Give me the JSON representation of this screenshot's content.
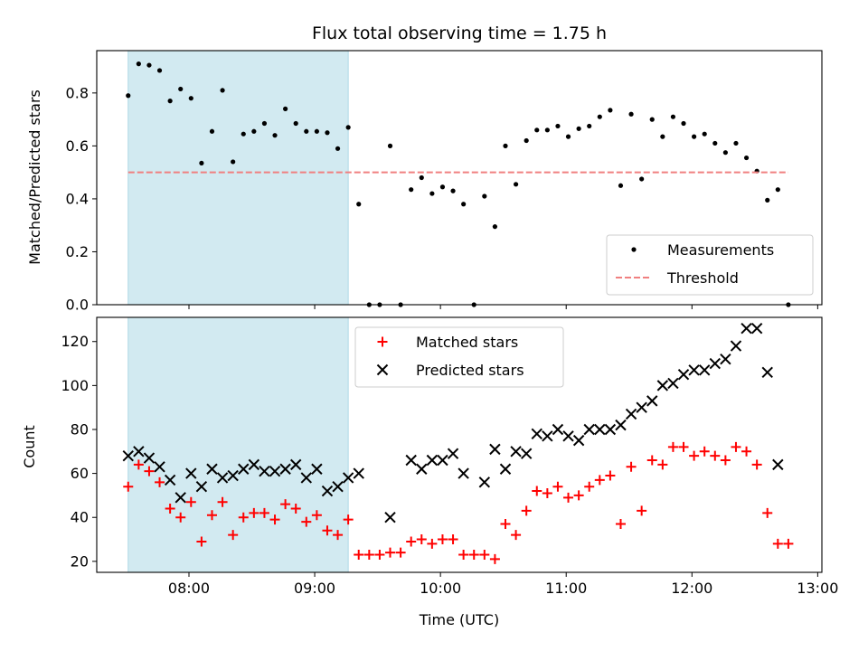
{
  "chart_data": [
    {
      "type": "scatter",
      "title": "Flux total observing time = 1.75 h",
      "xlabel": "",
      "ylabel": "Matched/Predicted stars",
      "xlim": [
        "07:16",
        "13:02"
      ],
      "ylim": [
        0,
        0.96
      ],
      "x_ticks": [
        "08:00",
        "09:00",
        "10:00",
        "11:00",
        "12:00",
        "13:00"
      ],
      "y_ticks": [
        0.0,
        0.2,
        0.4,
        0.6,
        0.8
      ],
      "y_tick_labels": [
        "0.0",
        "0.2",
        "0.4",
        "0.6",
        "0.8"
      ],
      "x_tick_labels_visible": false,
      "shaded_interval": [
        "07:31",
        "09:16"
      ],
      "shaded_color": "#add8e6",
      "legend_placement": "bottom-right",
      "grid": false,
      "series": [
        {
          "name": "Measurements",
          "kind": "scatter",
          "marker": "dot",
          "color": "#000000",
          "points": [
            [
              "07:31",
              0.79
            ],
            [
              "07:36",
              0.91
            ],
            [
              "07:41",
              0.905
            ],
            [
              "07:46",
              0.885
            ],
            [
              "07:51",
              0.77
            ],
            [
              "07:56",
              0.815
            ],
            [
              "08:01",
              0.78
            ],
            [
              "08:06",
              0.535
            ],
            [
              "08:11",
              0.655
            ],
            [
              "08:16",
              0.81
            ],
            [
              "08:21",
              0.54
            ],
            [
              "08:26",
              0.645
            ],
            [
              "08:31",
              0.655
            ],
            [
              "08:36",
              0.685
            ],
            [
              "08:41",
              0.64
            ],
            [
              "08:46",
              0.74
            ],
            [
              "08:51",
              0.685
            ],
            [
              "08:56",
              0.655
            ],
            [
              "09:01",
              0.655
            ],
            [
              "09:06",
              0.65
            ],
            [
              "09:11",
              0.59
            ],
            [
              "09:16",
              0.67
            ],
            [
              "09:21",
              0.38
            ],
            [
              "09:26",
              0.0
            ],
            [
              "09:31",
              0.0
            ],
            [
              "09:36",
              0.6
            ],
            [
              "09:41",
              0.0
            ],
            [
              "09:46",
              0.435
            ],
            [
              "09:51",
              0.48
            ],
            [
              "09:56",
              0.42
            ],
            [
              "10:01",
              0.445
            ],
            [
              "10:06",
              0.43
            ],
            [
              "10:11",
              0.38
            ],
            [
              "10:16",
              0.0
            ],
            [
              "10:21",
              0.41
            ],
            [
              "10:26",
              0.295
            ],
            [
              "10:31",
              0.6
            ],
            [
              "10:36",
              0.455
            ],
            [
              "10:41",
              0.62
            ],
            [
              "10:46",
              0.66
            ],
            [
              "10:51",
              0.66
            ],
            [
              "10:56",
              0.675
            ],
            [
              "11:01",
              0.635
            ],
            [
              "11:06",
              0.665
            ],
            [
              "11:11",
              0.675
            ],
            [
              "11:16",
              0.71
            ],
            [
              "11:21",
              0.735
            ],
            [
              "11:26",
              0.45
            ],
            [
              "11:31",
              0.72
            ],
            [
              "11:36",
              0.475
            ],
            [
              "11:41",
              0.7
            ],
            [
              "11:46",
              0.635
            ],
            [
              "11:51",
              0.71
            ],
            [
              "11:56",
              0.685
            ],
            [
              "12:01",
              0.635
            ],
            [
              "12:06",
              0.645
            ],
            [
              "12:11",
              0.61
            ],
            [
              "12:16",
              0.575
            ],
            [
              "12:21",
              0.61
            ],
            [
              "12:26",
              0.555
            ],
            [
              "12:31",
              0.505
            ],
            [
              "12:36",
              0.395
            ],
            [
              "12:41",
              0.435
            ],
            [
              "12:46",
              0.0
            ]
          ]
        },
        {
          "name": "Threshold",
          "kind": "line",
          "style": "dashed",
          "color": "#f08080",
          "points": [
            [
              "07:31",
              0.5
            ],
            [
              "12:46",
              0.5
            ]
          ]
        }
      ]
    },
    {
      "type": "scatter",
      "title": "",
      "xlabel": "Time (UTC)",
      "ylabel": "Count",
      "xlim": [
        "07:16",
        "13:02"
      ],
      "ylim": [
        15,
        131
      ],
      "x_ticks": [
        "08:00",
        "09:00",
        "10:00",
        "11:00",
        "12:00",
        "13:00"
      ],
      "x_tick_labels": [
        "08:00",
        "09:00",
        "10:00",
        "11:00",
        "12:00",
        "13:00"
      ],
      "y_ticks": [
        20,
        40,
        60,
        80,
        100,
        120
      ],
      "y_tick_labels": [
        "20",
        "40",
        "60",
        "80",
        "100",
        "120"
      ],
      "shaded_interval": [
        "07:31",
        "09:16"
      ],
      "shaded_color": "#add8e6",
      "legend_placement": "top-center",
      "grid": false,
      "series": [
        {
          "name": "Matched stars",
          "kind": "scatter",
          "marker": "plus",
          "color": "#ff0000",
          "points": [
            [
              "07:31",
              54
            ],
            [
              "07:36",
              64
            ],
            [
              "07:41",
              61
            ],
            [
              "07:46",
              56
            ],
            [
              "07:51",
              44
            ],
            [
              "07:56",
              40
            ],
            [
              "08:01",
              47
            ],
            [
              "08:06",
              29
            ],
            [
              "08:11",
              41
            ],
            [
              "08:16",
              47
            ],
            [
              "08:21",
              32
            ],
            [
              "08:26",
              40
            ],
            [
              "08:31",
              42
            ],
            [
              "08:36",
              42
            ],
            [
              "08:41",
              39
            ],
            [
              "08:46",
              46
            ],
            [
              "08:51",
              44
            ],
            [
              "08:56",
              38
            ],
            [
              "09:01",
              41
            ],
            [
              "09:06",
              34
            ],
            [
              "09:11",
              32
            ],
            [
              "09:16",
              39
            ],
            [
              "09:21",
              23
            ],
            [
              "09:26",
              23
            ],
            [
              "09:31",
              23
            ],
            [
              "09:36",
              24
            ],
            [
              "09:41",
              24
            ],
            [
              "09:46",
              29
            ],
            [
              "09:51",
              30
            ],
            [
              "09:56",
              28
            ],
            [
              "10:01",
              30
            ],
            [
              "10:06",
              30
            ],
            [
              "10:11",
              23
            ],
            [
              "10:16",
              23
            ],
            [
              "10:21",
              23
            ],
            [
              "10:26",
              21
            ],
            [
              "10:31",
              37
            ],
            [
              "10:36",
              32
            ],
            [
              "10:41",
              43
            ],
            [
              "10:46",
              52
            ],
            [
              "10:51",
              51
            ],
            [
              "10:56",
              54
            ],
            [
              "11:01",
              49
            ],
            [
              "11:06",
              50
            ],
            [
              "11:11",
              54
            ],
            [
              "11:16",
              57
            ],
            [
              "11:21",
              59
            ],
            [
              "11:26",
              37
            ],
            [
              "11:31",
              63
            ],
            [
              "11:36",
              43
            ],
            [
              "11:41",
              66
            ],
            [
              "11:46",
              64
            ],
            [
              "11:51",
              72
            ],
            [
              "11:56",
              72
            ],
            [
              "12:01",
              68
            ],
            [
              "12:06",
              70
            ],
            [
              "12:11",
              68
            ],
            [
              "12:16",
              66
            ],
            [
              "12:21",
              72
            ],
            [
              "12:26",
              70
            ],
            [
              "12:31",
              64
            ],
            [
              "12:36",
              42
            ],
            [
              "12:41",
              28
            ],
            [
              "12:46",
              28
            ]
          ]
        },
        {
          "name": "Predicted stars",
          "kind": "scatter",
          "marker": "x",
          "color": "#000000",
          "points": [
            [
              "07:31",
              68
            ],
            [
              "07:36",
              70
            ],
            [
              "07:41",
              67
            ],
            [
              "07:46",
              63
            ],
            [
              "07:51",
              57
            ],
            [
              "07:56",
              49
            ],
            [
              "08:01",
              60
            ],
            [
              "08:06",
              54
            ],
            [
              "08:11",
              62
            ],
            [
              "08:16",
              58
            ],
            [
              "08:21",
              59
            ],
            [
              "08:26",
              62
            ],
            [
              "08:31",
              64
            ],
            [
              "08:36",
              61
            ],
            [
              "08:41",
              61
            ],
            [
              "08:46",
              62
            ],
            [
              "08:51",
              64
            ],
            [
              "08:56",
              58
            ],
            [
              "09:01",
              62
            ],
            [
              "09:06",
              52
            ],
            [
              "09:11",
              54
            ],
            [
              "09:16",
              58
            ],
            [
              "09:21",
              60
            ],
            [
              "09:36",
              40
            ],
            [
              "09:46",
              66
            ],
            [
              "09:51",
              62
            ],
            [
              "09:56",
              66
            ],
            [
              "10:01",
              66
            ],
            [
              "10:06",
              69
            ],
            [
              "10:11",
              60
            ],
            [
              "10:21",
              56
            ],
            [
              "10:26",
              71
            ],
            [
              "10:31",
              62
            ],
            [
              "10:36",
              70
            ],
            [
              "10:41",
              69
            ],
            [
              "10:46",
              78
            ],
            [
              "10:51",
              77
            ],
            [
              "10:56",
              80
            ],
            [
              "11:01",
              77
            ],
            [
              "11:06",
              75
            ],
            [
              "11:11",
              80
            ],
            [
              "11:16",
              80
            ],
            [
              "11:21",
              80
            ],
            [
              "11:26",
              82
            ],
            [
              "11:31",
              87
            ],
            [
              "11:36",
              90
            ],
            [
              "11:41",
              93
            ],
            [
              "11:46",
              100
            ],
            [
              "11:51",
              101
            ],
            [
              "11:56",
              105
            ],
            [
              "12:01",
              107
            ],
            [
              "12:06",
              107
            ],
            [
              "12:11",
              110
            ],
            [
              "12:16",
              112
            ],
            [
              "12:21",
              118
            ],
            [
              "12:26",
              126
            ],
            [
              "12:31",
              126
            ],
            [
              "12:36",
              106
            ],
            [
              "12:41",
              64
            ]
          ]
        }
      ]
    }
  ]
}
